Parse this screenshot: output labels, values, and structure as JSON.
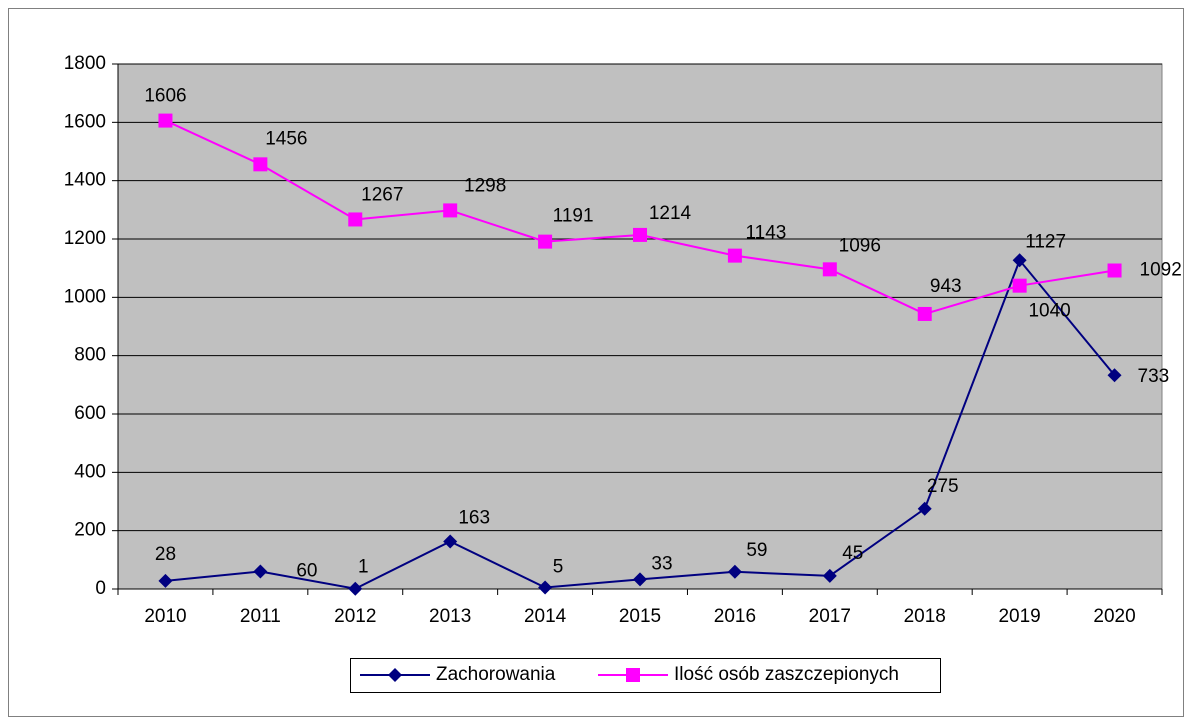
{
  "chart_data": {
    "type": "line",
    "categories": [
      "2010",
      "2011",
      "2012",
      "2013",
      "2014",
      "2015",
      "2016",
      "2017",
      "2018",
      "2019",
      "2020"
    ],
    "series": [
      {
        "name": "Zachorowania",
        "color": "#000080",
        "marker": "diamond",
        "values": [
          28,
          60,
          1,
          163,
          5,
          33,
          59,
          45,
          275,
          1127,
          733
        ]
      },
      {
        "name": "Ilość osób zaszczepionych",
        "color": "#ff00ff",
        "marker": "square",
        "values": [
          1606,
          1456,
          1267,
          1298,
          1191,
          1214,
          1143,
          1096,
          943,
          1040,
          1092
        ]
      }
    ],
    "ylim": [
      0,
      1800
    ],
    "yticks": [
      0,
      200,
      400,
      600,
      800,
      1000,
      1200,
      1400,
      1600,
      1800
    ],
    "grid": true,
    "legend": "bottom",
    "plot_background": "#c0c0c0"
  }
}
